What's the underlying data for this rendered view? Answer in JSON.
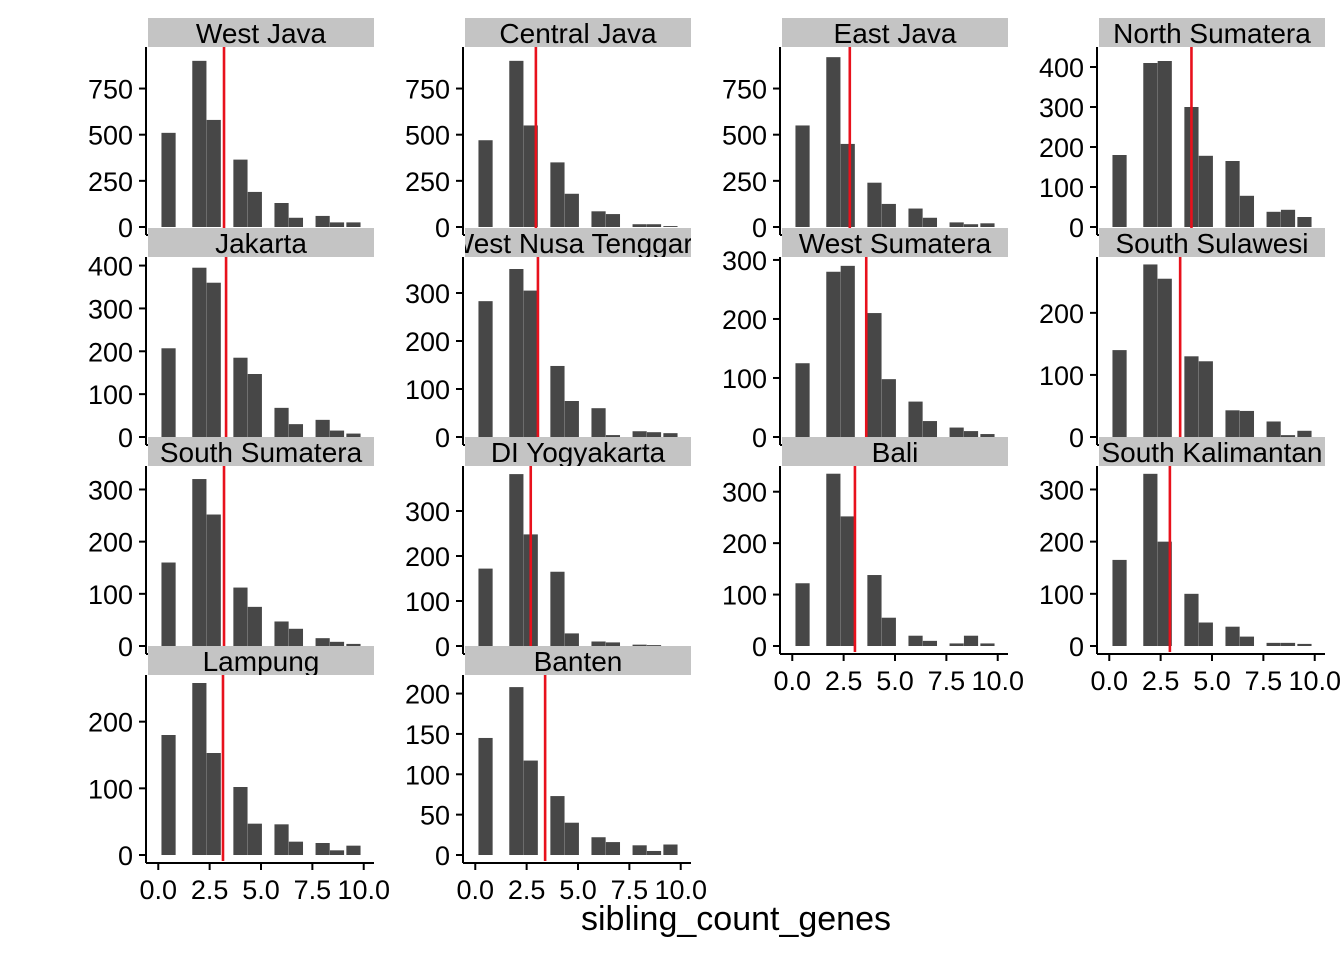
{
  "chart_data": {
    "type": "bar",
    "xlabel": "sibling_count_genes",
    "xlim": [
      -0.5,
      10.5
    ],
    "xticks": [
      0,
      2.5,
      5,
      7.5,
      10
    ],
    "xtick_labels": [
      "0.0",
      "2.5",
      "5.0",
      "7.5",
      "10.0"
    ],
    "bins": [
      0.5,
      2,
      2.7,
      4,
      4.7,
      6,
      6.7,
      8,
      8.7,
      9.5
    ],
    "bin_width": 0.69,
    "colors": {
      "bar": "#474747",
      "mean_line": "#e8111c",
      "strip": "#c4c4c4",
      "axis": "#000000"
    },
    "panels": [
      {
        "title": "West Java",
        "values": [
          510,
          900,
          580,
          365,
          190,
          130,
          50,
          60,
          25,
          25
        ],
        "mean": 3.2,
        "ylim": [
          0,
          975
        ],
        "yticks": [
          0,
          250,
          500,
          750
        ]
      },
      {
        "title": "Central Java",
        "values": [
          470,
          900,
          550,
          350,
          180,
          85,
          70,
          15,
          15,
          5
        ],
        "mean": 2.95,
        "ylim": [
          0,
          975
        ],
        "yticks": [
          0,
          250,
          500,
          750
        ]
      },
      {
        "title": "East Java",
        "values": [
          550,
          920,
          450,
          240,
          125,
          100,
          50,
          25,
          15,
          20
        ],
        "mean": 2.8,
        "ylim": [
          0,
          975
        ],
        "yticks": [
          0,
          250,
          500,
          750
        ]
      },
      {
        "title": "North Sumatera",
        "values": [
          180,
          410,
          415,
          300,
          178,
          165,
          78,
          38,
          43,
          25
        ],
        "mean": 4.0,
        "ylim": [
          0,
          450
        ],
        "yticks": [
          0,
          100,
          200,
          300,
          400
        ]
      },
      {
        "title": "Jakarta",
        "values": [
          207,
          395,
          360,
          185,
          147,
          68,
          30,
          40,
          15,
          8
        ],
        "mean": 3.3,
        "ylim": [
          0,
          420
        ],
        "yticks": [
          0,
          100,
          200,
          300,
          400
        ]
      },
      {
        "title": "West Nusa Tenggara",
        "values": [
          283,
          350,
          305,
          148,
          75,
          60,
          4,
          12,
          10,
          8
        ],
        "mean": 3.05,
        "ylim": [
          0,
          375
        ],
        "yticks": [
          0,
          100,
          200,
          300
        ]
      },
      {
        "title": "West Sumatera",
        "values": [
          125,
          280,
          290,
          210,
          98,
          60,
          27,
          16,
          10,
          5
        ],
        "mean": 3.6,
        "ylim": [
          0,
          305
        ],
        "yticks": [
          0,
          100,
          200,
          300
        ]
      },
      {
        "title": "South Sulawesi",
        "values": [
          140,
          278,
          255,
          130,
          122,
          43,
          42,
          25,
          3,
          10
        ],
        "mean": 3.45,
        "ylim": [
          0,
          290
        ],
        "yticks": [
          0,
          100,
          200
        ]
      },
      {
        "title": "South Sumatera",
        "values": [
          160,
          320,
          252,
          112,
          75,
          47,
          33,
          15,
          8,
          4
        ],
        "mean": 3.2,
        "ylim": [
          0,
          345
        ],
        "yticks": [
          0,
          100,
          200,
          300
        ]
      },
      {
        "title": "DI Yogyakarta",
        "values": [
          172,
          382,
          248,
          165,
          28,
          10,
          8,
          3,
          2,
          0
        ],
        "mean": 2.7,
        "ylim": [
          0,
          400
        ],
        "yticks": [
          0,
          100,
          200,
          300
        ]
      },
      {
        "title": "Bali",
        "values": [
          122,
          335,
          252,
          138,
          55,
          20,
          10,
          5,
          20,
          5
        ],
        "mean": 3.05,
        "ylim": [
          0,
          350
        ],
        "yticks": [
          0,
          100,
          200,
          300
        ]
      },
      {
        "title": "South Kalimantan",
        "values": [
          165,
          330,
          200,
          100,
          45,
          37,
          18,
          6,
          6,
          4
        ],
        "mean": 2.95,
        "ylim": [
          0,
          345
        ],
        "yticks": [
          0,
          100,
          200,
          300
        ]
      },
      {
        "title": "Lampung",
        "values": [
          180,
          258,
          153,
          102,
          47,
          46,
          20,
          18,
          7,
          14
        ],
        "mean": 3.15,
        "ylim": [
          0,
          270
        ],
        "yticks": [
          0,
          100,
          200
        ]
      },
      {
        "title": "Banten",
        "values": [
          145,
          208,
          117,
          73,
          40,
          22,
          16,
          12,
          5,
          13
        ],
        "mean": 3.4,
        "ylim": [
          0,
          223
        ],
        "yticks": [
          0,
          50,
          100,
          150,
          200
        ]
      }
    ]
  }
}
